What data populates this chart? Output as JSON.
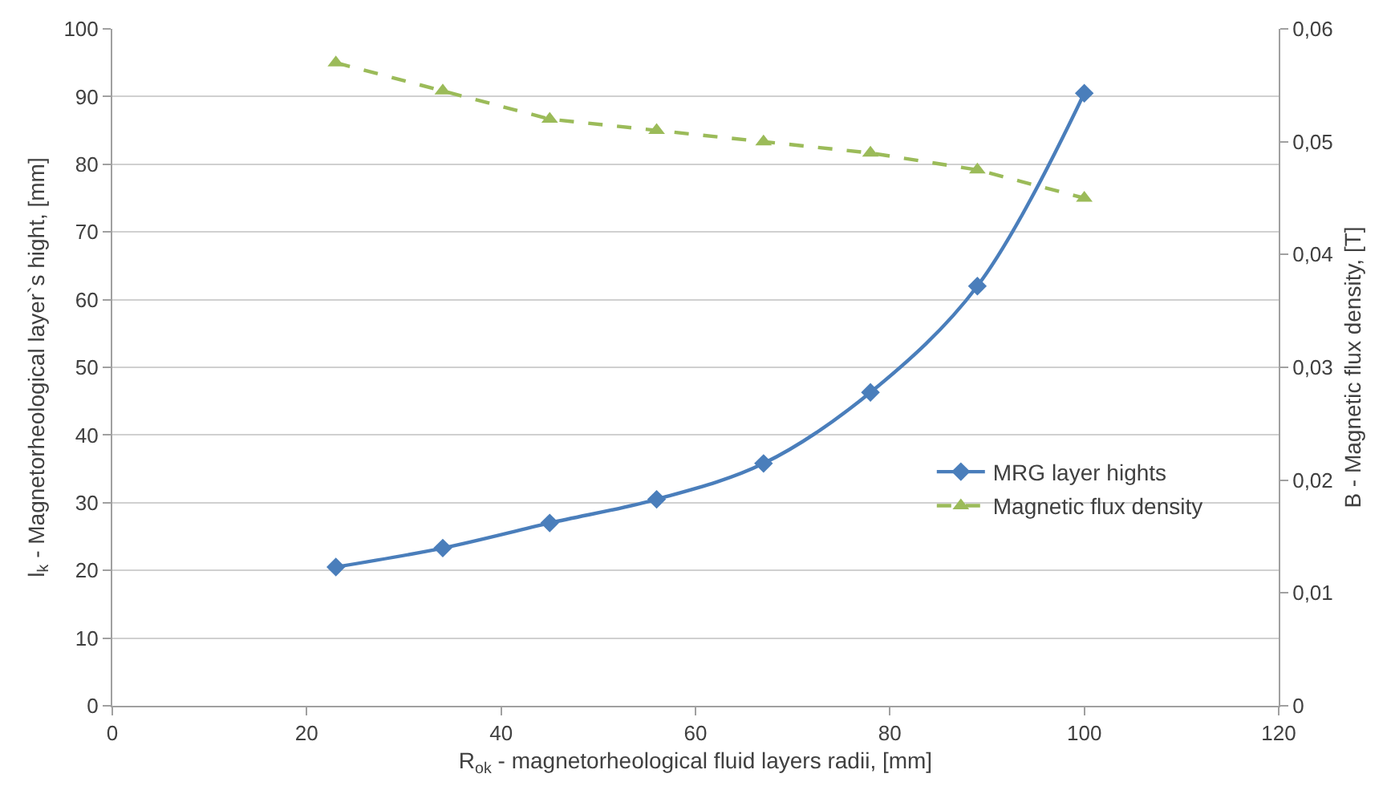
{
  "chart_data": {
    "type": "line",
    "xlabel": "R$_{ok}$ - magnetorheological fluid layers radii, [mm]",
    "ylabel": "l$_{k}$ - Magnetorheological layer`s hight, [mm]",
    "y2label": "B - Magnetic flux density, [T]",
    "x": [
      23,
      34,
      45,
      56,
      67,
      78,
      89,
      100
    ],
    "series": [
      {
        "name": "MRG layer hights",
        "color": "#4a7ebb",
        "marker": "diamond",
        "line_style": "solid",
        "values": [
          20.5,
          23.3,
          27,
          30.5,
          35.8,
          46.3,
          62,
          90.5
        ]
      },
      {
        "name": "Magnetic flux density",
        "color": "#9bbb59",
        "marker": "triangle",
        "line_style": "dashed",
        "axis": "y2",
        "values": [
          0.057,
          0.0545,
          0.052,
          0.051,
          0.05,
          0.049,
          0.0475,
          0.045
        ]
      }
    ],
    "xlim": [
      0,
      120
    ],
    "xticks": [
      0,
      20,
      40,
      60,
      80,
      100,
      120
    ],
    "ylim": [
      0,
      100
    ],
    "yticks": [
      0,
      10,
      20,
      30,
      40,
      50,
      60,
      70,
      80,
      90,
      100
    ],
    "y2lim": [
      0,
      0.06
    ],
    "y2ticks": [
      0,
      {
        "value": 0.01,
        "label": "0,01"
      },
      {
        "value": 0.02,
        "label": "0,02"
      },
      {
        "value": 0.03,
        "label": "0,03"
      },
      {
        "value": 0.04,
        "label": "0,04"
      },
      {
        "value": 0.05,
        "label": "0,05"
      },
      {
        "value": 0.06,
        "label": "0,06"
      }
    ],
    "grid": "y",
    "legend": "right"
  }
}
